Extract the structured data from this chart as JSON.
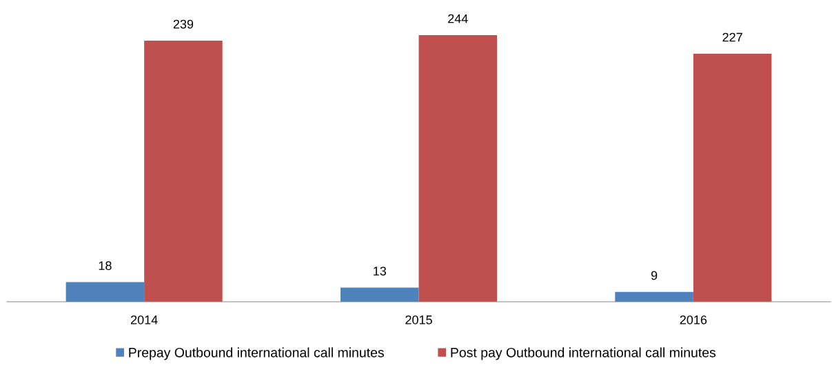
{
  "chart_data": {
    "type": "bar",
    "categories": [
      "2014",
      "2015",
      "2016"
    ],
    "series": [
      {
        "name": "Prepay Outbound international call minutes",
        "color": "#4f81bd",
        "values": [
          18,
          13,
          9
        ]
      },
      {
        "name": "Post pay Outbound international call minutes",
        "color": "#c0504d",
        "values": [
          239,
          244,
          227
        ]
      }
    ],
    "data_labels": true,
    "legend": "bottom",
    "grid": false
  }
}
